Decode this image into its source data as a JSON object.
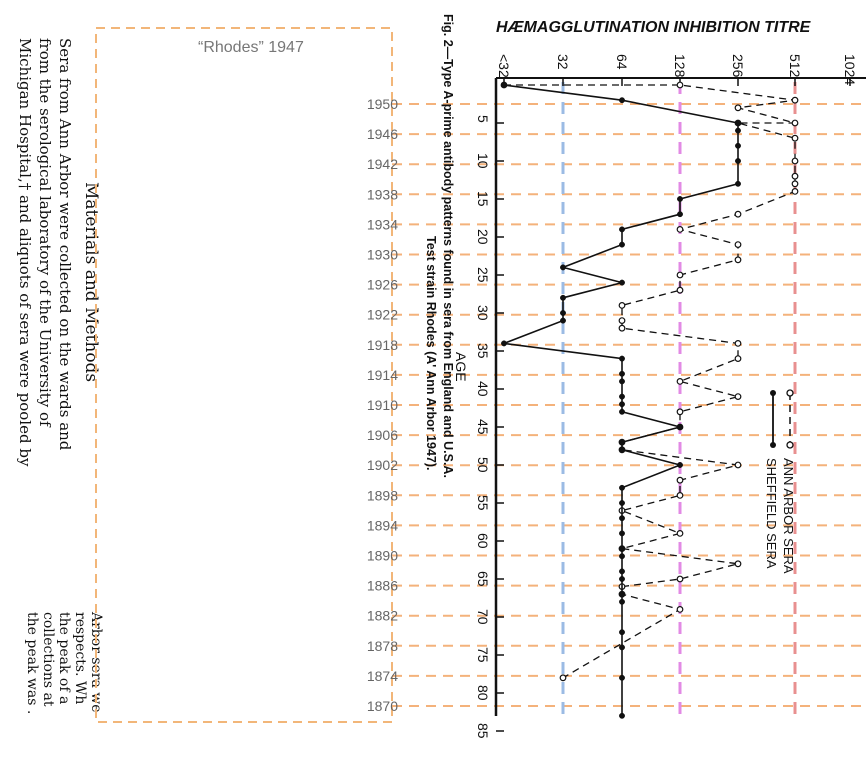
{
  "chart_data": {
    "type": "line",
    "title": "HÆMAGGLUTINATION INHIBITION TITRE",
    "xlabel": "AGE",
    "caption": "Fig. 2—Type A-prime antibody patterns found in sera from England and U.S.A.",
    "caption2": "Test strain Rhodes (A' Ann Arbor 1947).",
    "x_ticks": [
      5,
      10,
      15,
      20,
      25,
      30,
      35,
      40,
      45,
      50,
      55,
      60,
      65,
      70,
      75,
      80,
      85
    ],
    "y_ticks": [
      "<32",
      "32",
      "64",
      "128",
      "256",
      "512",
      "1024"
    ],
    "legend": [
      "ANN ARBOR SERA",
      "SHEFFIELD SERA"
    ],
    "series": [
      {
        "name": "ANN ARBOR SERA",
        "style": "dashed-open",
        "points": [
          [
            0,
            "<32"
          ],
          [
            0,
            "128"
          ],
          [
            2,
            "512"
          ],
          [
            3,
            "256"
          ],
          [
            5,
            "512"
          ],
          [
            5,
            "256"
          ],
          [
            7,
            "512"
          ],
          [
            10,
            "512"
          ],
          [
            12,
            "512"
          ],
          [
            13,
            "512"
          ],
          [
            14,
            "512"
          ],
          [
            17,
            "256"
          ],
          [
            19,
            "128"
          ],
          [
            21,
            "256"
          ],
          [
            23,
            "256"
          ],
          [
            25,
            "128"
          ],
          [
            27,
            "128"
          ],
          [
            29,
            "64"
          ],
          [
            31,
            "64"
          ],
          [
            32,
            "64"
          ],
          [
            34,
            "256"
          ],
          [
            36,
            "256"
          ],
          [
            39,
            "128"
          ],
          [
            41,
            "256"
          ],
          [
            43,
            "128"
          ],
          [
            45,
            "128"
          ],
          [
            47,
            "64"
          ],
          [
            48,
            "64"
          ],
          [
            50,
            "256"
          ],
          [
            52,
            "128"
          ],
          [
            54,
            "128"
          ],
          [
            56,
            "64"
          ],
          [
            59,
            "128"
          ],
          [
            61,
            "64"
          ],
          [
            63,
            "256"
          ],
          [
            65,
            "128"
          ],
          [
            66,
            "64"
          ],
          [
            67,
            "64"
          ],
          [
            69,
            "128"
          ],
          [
            78,
            "32"
          ]
        ]
      },
      {
        "name": "SHEFFIELD SERA",
        "style": "solid-filled",
        "points": [
          [
            0,
            "<32"
          ],
          [
            2,
            "64"
          ],
          [
            5,
            "256"
          ],
          [
            6,
            "256"
          ],
          [
            8,
            "256"
          ],
          [
            10,
            "256"
          ],
          [
            13,
            "256"
          ],
          [
            15,
            "128"
          ],
          [
            17,
            "128"
          ],
          [
            19,
            "64"
          ],
          [
            21,
            "64"
          ],
          [
            24,
            "32"
          ],
          [
            26,
            "64"
          ],
          [
            28,
            "32"
          ],
          [
            30,
            "32"
          ],
          [
            31,
            "32"
          ],
          [
            34,
            "<32"
          ],
          [
            36,
            "64"
          ],
          [
            38,
            "64"
          ],
          [
            39,
            "64"
          ],
          [
            41,
            "64"
          ],
          [
            42,
            "64"
          ],
          [
            43,
            "64"
          ],
          [
            45,
            "128"
          ],
          [
            47,
            "64"
          ],
          [
            48,
            "64"
          ],
          [
            50,
            "128"
          ],
          [
            53,
            "64"
          ],
          [
            55,
            "64"
          ],
          [
            57,
            "64"
          ],
          [
            59,
            "64"
          ],
          [
            61,
            "64"
          ],
          [
            62,
            "64"
          ],
          [
            64,
            "64"
          ],
          [
            65,
            "64"
          ],
          [
            67,
            "64"
          ],
          [
            68,
            "64"
          ],
          [
            72,
            "64"
          ],
          [
            74,
            "64"
          ],
          [
            78,
            "64"
          ],
          [
            83,
            "64"
          ]
        ]
      }
    ],
    "birth_years": [
      "1950",
      "1946",
      "1942",
      "1938",
      "1934",
      "1930",
      "1926",
      "1922",
      "1918",
      "1914",
      "1910",
      "1906",
      "1902",
      "1898",
      "1894",
      "1890",
      "1886",
      "1882",
      "1878",
      "1874",
      "1870"
    ],
    "overlay_label": "“Rhodes” 1947",
    "page_text": {
      "section_heading": "Materials and Methods",
      "left_lines": [
        "Sera from Ann Arbor were collected on the wards and",
        "from the serological laboratory of the University of",
        "Michigan Hospital,† and aliquots of sera were pooled by"
      ],
      "bottom_line": "Arbor sera we",
      "bottom_line2": "respects.  Wh",
      "bottom_line3": "the peak of a",
      "bottom_line4": "collections at",
      "bottom_line5": "the peak was ."
    }
  }
}
